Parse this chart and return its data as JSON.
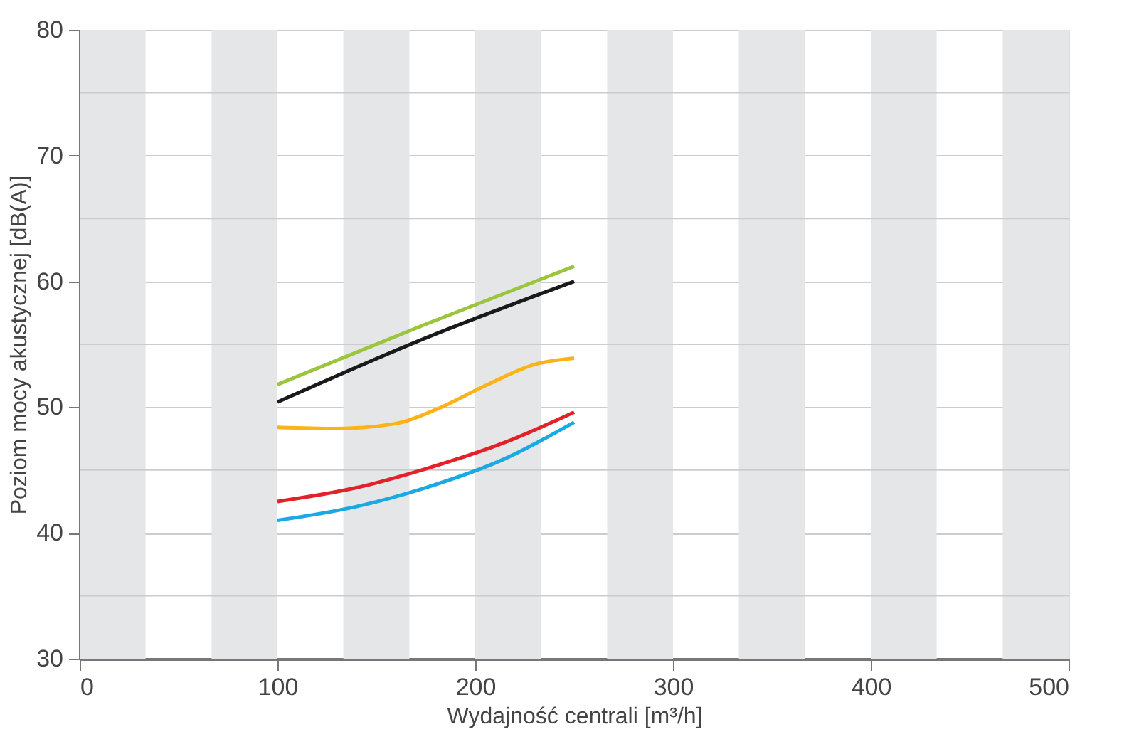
{
  "chart_data": {
    "type": "line",
    "xlabel": "Wydajność centrali [m³/h]",
    "ylabel": "Poziom mocy akustycznej [dB(A)]",
    "xlim": [
      0,
      500
    ],
    "xticks": [
      0,
      100,
      200,
      300,
      400,
      500
    ],
    "ylim": [
      30,
      80
    ],
    "yticks": [
      30,
      40,
      50,
      60,
      70,
      80
    ],
    "grid": "y",
    "marker": "none",
    "line_style": "solid",
    "series": [
      {
        "color": "#9bc53d",
        "x": [
          100,
          175,
          250
        ],
        "values": [
          51.8,
          56.6,
          61.2
        ]
      },
      {
        "color": "#1a1a1a",
        "x": [
          100,
          175,
          250
        ],
        "values": [
          50.4,
          55.5,
          60.0
        ]
      },
      {
        "color": "#fbb316",
        "x": [
          100,
          130,
          160,
          180,
          205,
          230,
          250
        ],
        "values": [
          48.4,
          48.3,
          48.7,
          49.8,
          51.7,
          53.4,
          53.9
        ]
      },
      {
        "color": "#e3212b",
        "x": [
          100,
          140,
          175,
          215,
          250
        ],
        "values": [
          42.5,
          43.6,
          45.1,
          47.2,
          49.6
        ]
      },
      {
        "color": "#1aa9e3",
        "x": [
          100,
          140,
          175,
          215,
          250
        ],
        "values": [
          41.0,
          42.1,
          43.6,
          45.9,
          48.8
        ]
      }
    ],
    "ref_lines": [
      {
        "axis": "y",
        "value": 35,
        "color": "#cccccc"
      },
      {
        "axis": "y",
        "value": 45,
        "color": "#cccccc"
      },
      {
        "axis": "y",
        "value": 55,
        "color": "#cccccc"
      },
      {
        "axis": "y",
        "value": 65,
        "color": "#cccccc"
      },
      {
        "axis": "y",
        "value": 75,
        "color": "#cccccc"
      }
    ],
    "bands": [
      {
        "axis": "x",
        "from": 0,
        "to": 33.3,
        "color": "#e5e6e8"
      },
      {
        "axis": "x",
        "from": 66.7,
        "to": 100,
        "color": "#e5e6e8"
      },
      {
        "axis": "x",
        "from": 133.3,
        "to": 166.7,
        "color": "#e5e6e8"
      },
      {
        "axis": "x",
        "from": 200,
        "to": 233.3,
        "color": "#e5e6e8"
      },
      {
        "axis": "x",
        "from": 266.7,
        "to": 300,
        "color": "#e5e6e8"
      },
      {
        "axis": "x",
        "from": 333.3,
        "to": 366.7,
        "color": "#e5e6e8"
      },
      {
        "axis": "x",
        "from": 400,
        "to": 433.3,
        "color": "#e5e6e8"
      },
      {
        "axis": "x",
        "from": 466.7,
        "to": 500,
        "color": "#e5e6e8"
      }
    ]
  }
}
